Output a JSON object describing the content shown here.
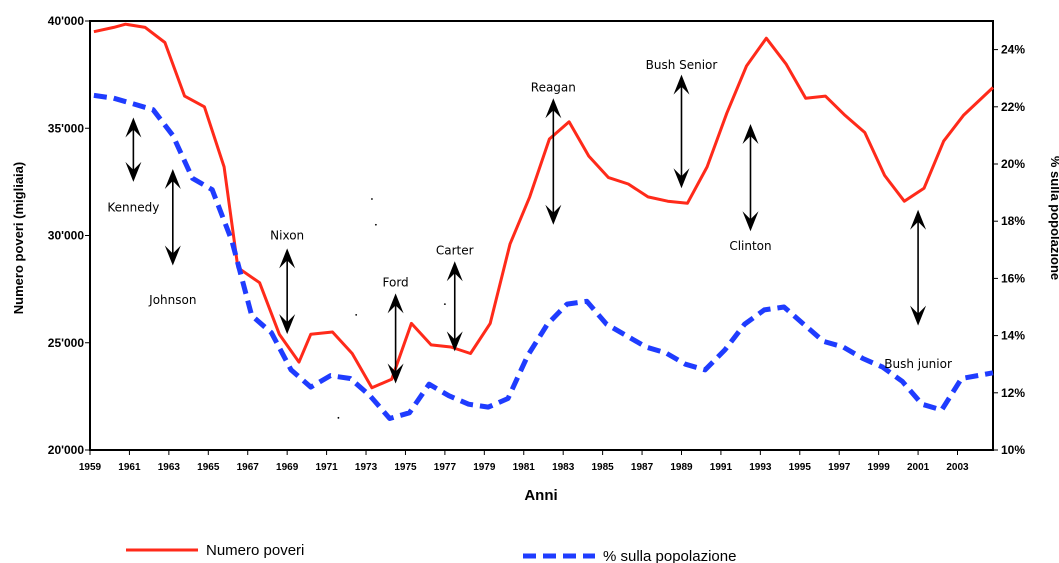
{
  "chart_data": {
    "type": "line",
    "title": "",
    "xlabel": "Anni",
    "ylabel_left": "Numero poveri (migliaia)",
    "ylabel_right": "% sulla popolazione",
    "xlim": [
      1959,
      2004.8
    ],
    "ylim_left": [
      20000,
      40000
    ],
    "ylim_right": [
      10,
      25
    ],
    "x_ticks": [
      1959,
      1961,
      1963,
      1965,
      1967,
      1969,
      1971,
      1973,
      1975,
      1977,
      1979,
      1981,
      1983,
      1985,
      1987,
      1989,
      1991,
      1993,
      1995,
      1997,
      1999,
      2001,
      2003
    ],
    "y_left_ticks": [
      {
        "value": 20000,
        "label": "20'000"
      },
      {
        "value": 25000,
        "label": "25'000"
      },
      {
        "value": 30000,
        "label": "30'000"
      },
      {
        "value": 35000,
        "label": "35'000"
      },
      {
        "value": 40000,
        "label": "40'000"
      }
    ],
    "y_right_ticks": [
      {
        "value": 10,
        "label": "10%"
      },
      {
        "value": 12,
        "label": "12%"
      },
      {
        "value": 14,
        "label": "14%"
      },
      {
        "value": 16,
        "label": "16%"
      },
      {
        "value": 18,
        "label": "18%"
      },
      {
        "value": 20,
        "label": "20%"
      },
      {
        "value": 22,
        "label": "22%"
      },
      {
        "value": 24,
        "label": "24%"
      }
    ],
    "grid": false,
    "legend_position": "bottom",
    "series": [
      {
        "name": "Numero poveri",
        "axis": "left",
        "color": "#ff2a1a",
        "style": "solid",
        "x": [
          1959.2,
          1960.2,
          1960.8,
          1961.8,
          1962.8,
          1963.8,
          1964.8,
          1965.8,
          1966.5,
          1967.6,
          1968.6,
          1969.6,
          1970.2,
          1971.3,
          1972.3,
          1973.3,
          1974.3,
          1975.3,
          1976.3,
          1977.3,
          1978.3,
          1979.3,
          1980.3,
          1981.3,
          1982.3,
          1983.3,
          1984.3,
          1985.3,
          1986.3,
          1987.3,
          1988.3,
          1989.3,
          1990.3,
          1991.3,
          1992.3,
          1993.3,
          1994.3,
          1995.3,
          1996.3,
          1997.3,
          1998.3,
          1999.3,
          2000.3,
          2001.3,
          2002.3,
          2003.3,
          2004.8
        ],
        "values": [
          39500,
          39700,
          39850,
          39700,
          39000,
          36500,
          36000,
          33200,
          28500,
          27800,
          25400,
          24100,
          25400,
          25500,
          24500,
          22900,
          23300,
          25900,
          24900,
          24800,
          24500,
          25900,
          29600,
          31800,
          34500,
          35300,
          33700,
          32700,
          32400,
          31800,
          31600,
          31500,
          33200,
          35700,
          37900,
          39200,
          38000,
          36400,
          36500,
          35600,
          34800,
          32800,
          31600,
          32200,
          34400,
          35600,
          36900
        ]
      },
      {
        "name": "% sulla popolazione",
        "axis": "right",
        "color": "#1f3cff",
        "style": "dashed",
        "x": [
          1959.2,
          1960.2,
          1961.2,
          1962.2,
          1963.2,
          1964.2,
          1965.2,
          1966.2,
          1967.2,
          1968.2,
          1969.2,
          1970.2,
          1971.2,
          1972.2,
          1973.2,
          1974.2,
          1975.2,
          1976.2,
          1977.2,
          1978.2,
          1979.2,
          1980.2,
          1981.2,
          1982.2,
          1983.2,
          1984.2,
          1985.2,
          1986.2,
          1987.2,
          1988.2,
          1989.2,
          1990.2,
          1991.2,
          1992.2,
          1993.2,
          1994.2,
          1995.2,
          1996.2,
          1997.2,
          1998.2,
          1999.2,
          2000.2,
          2001.2,
          2002.2,
          2003.2,
          2004.8
        ],
        "values": [
          22.4,
          22.3,
          22.1,
          21.9,
          21.0,
          19.5,
          19.1,
          17.3,
          14.7,
          14.1,
          12.8,
          12.2,
          12.6,
          12.5,
          11.9,
          11.1,
          11.3,
          12.3,
          11.9,
          11.6,
          11.5,
          11.8,
          13.3,
          14.4,
          15.1,
          15.2,
          14.4,
          14.0,
          13.6,
          13.4,
          13.0,
          12.8,
          13.5,
          14.4,
          14.9,
          15.0,
          14.4,
          13.8,
          13.6,
          13.2,
          12.9,
          12.4,
          11.6,
          11.4,
          12.5,
          12.7
        ]
      }
    ],
    "annotations": [
      {
        "label": "Kennedy",
        "x": 1961.2,
        "arrow_top": 35500,
        "arrow_bottom": 32500,
        "label_y": 31300
      },
      {
        "label": "Johnson",
        "x": 1963.2,
        "arrow_top": 33100,
        "arrow_bottom": 28600,
        "label_y": 27000
      },
      {
        "label": "Nixon",
        "x": 1969.0,
        "arrow_top": 29400,
        "arrow_bottom": 25400,
        "label_y": 30000
      },
      {
        "label": "Ford",
        "x": 1974.5,
        "arrow_top": 27300,
        "arrow_bottom": 23100,
        "label_y": 27800
      },
      {
        "label": "Carter",
        "x": 1977.5,
        "arrow_top": 28800,
        "arrow_bottom": 24600,
        "label_y": 29300
      },
      {
        "label": "Reagan",
        "x": 1982.5,
        "arrow_top": 36400,
        "arrow_bottom": 30500,
        "label_y": 36900
      },
      {
        "label": "Bush Senior",
        "x": 1989.0,
        "arrow_top": 37500,
        "arrow_bottom": 32200,
        "label_y": 37950
      },
      {
        "label": "Clinton",
        "x": 1992.5,
        "arrow_top": 35200,
        "arrow_bottom": 30200,
        "label_y": 29500
      },
      {
        "label": "Bush junior",
        "x": 2001.0,
        "arrow_top": 31200,
        "arrow_bottom": 25800,
        "label_y": 24000
      }
    ],
    "scatter_dots": [
      {
        "x": 1972.5,
        "y": 26300
      },
      {
        "x": 1973.3,
        "y": 31700
      },
      {
        "x": 1973.5,
        "y": 30500
      },
      {
        "x": 1977.0,
        "y": 26800
      },
      {
        "x": 1971.6,
        "y": 21500
      }
    ]
  }
}
